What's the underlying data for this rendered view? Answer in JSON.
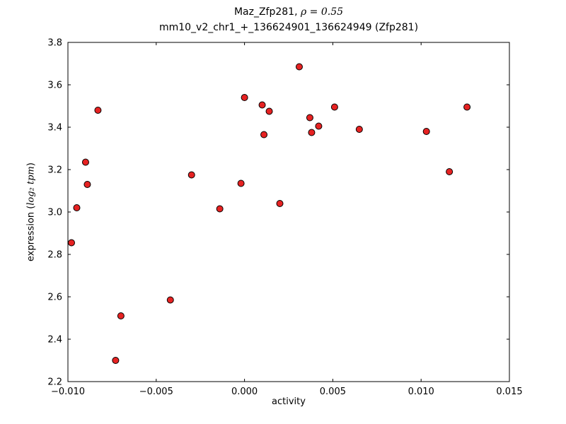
{
  "chart_data": {
    "type": "scatter",
    "title_prefix": "Maz_Zfp281, ",
    "title_rho": "ρ = 0.55",
    "subtitle": "mm10_v2_chr1_+_136624901_136624949 (Zfp281)",
    "xlabel": "activity",
    "ylabel_prefix": "expression (",
    "ylabel_math": "log₂ tpm",
    "ylabel_close": ")",
    "xlim": [
      -0.01,
      0.015
    ],
    "ylim": [
      2.2,
      3.8
    ],
    "xticks": [
      {
        "v": -0.01,
        "label": "−0.010"
      },
      {
        "v": -0.005,
        "label": "−0.005"
      },
      {
        "v": 0.0,
        "label": "0.000"
      },
      {
        "v": 0.005,
        "label": "0.005"
      },
      {
        "v": 0.01,
        "label": "0.010"
      },
      {
        "v": 0.015,
        "label": "0.015"
      }
    ],
    "yticks": [
      {
        "v": 2.2,
        "label": "2.2"
      },
      {
        "v": 2.4,
        "label": "2.4"
      },
      {
        "v": 2.6,
        "label": "2.6"
      },
      {
        "v": 2.8,
        "label": "2.8"
      },
      {
        "v": 3.0,
        "label": "3.0"
      },
      {
        "v": 3.2,
        "label": "3.2"
      },
      {
        "v": 3.4,
        "label": "3.4"
      },
      {
        "v": 3.6,
        "label": "3.6"
      },
      {
        "v": 3.8,
        "label": "3.8"
      }
    ],
    "grid": false,
    "legend": "none",
    "marker_color": "#e62222",
    "marker_edge_color": "#000000",
    "points": [
      [
        -0.0098,
        2.855
      ],
      [
        -0.0095,
        3.02
      ],
      [
        -0.009,
        3.235
      ],
      [
        -0.0089,
        3.13
      ],
      [
        -0.0083,
        3.48
      ],
      [
        -0.0073,
        2.3
      ],
      [
        -0.007,
        2.51
      ],
      [
        -0.0042,
        2.585
      ],
      [
        -0.003,
        3.175
      ],
      [
        -0.0014,
        3.015
      ],
      [
        -0.0002,
        3.135
      ],
      [
        0.0,
        3.54
      ],
      [
        0.001,
        3.505
      ],
      [
        0.0011,
        3.365
      ],
      [
        0.0014,
        3.475
      ],
      [
        0.002,
        3.04
      ],
      [
        0.0031,
        3.685
      ],
      [
        0.0037,
        3.445
      ],
      [
        0.0038,
        3.375
      ],
      [
        0.0042,
        3.405
      ],
      [
        0.0051,
        3.495
      ],
      [
        0.0065,
        3.39
      ],
      [
        0.0103,
        3.38
      ],
      [
        0.0116,
        3.19
      ],
      [
        0.0126,
        3.495
      ]
    ]
  }
}
